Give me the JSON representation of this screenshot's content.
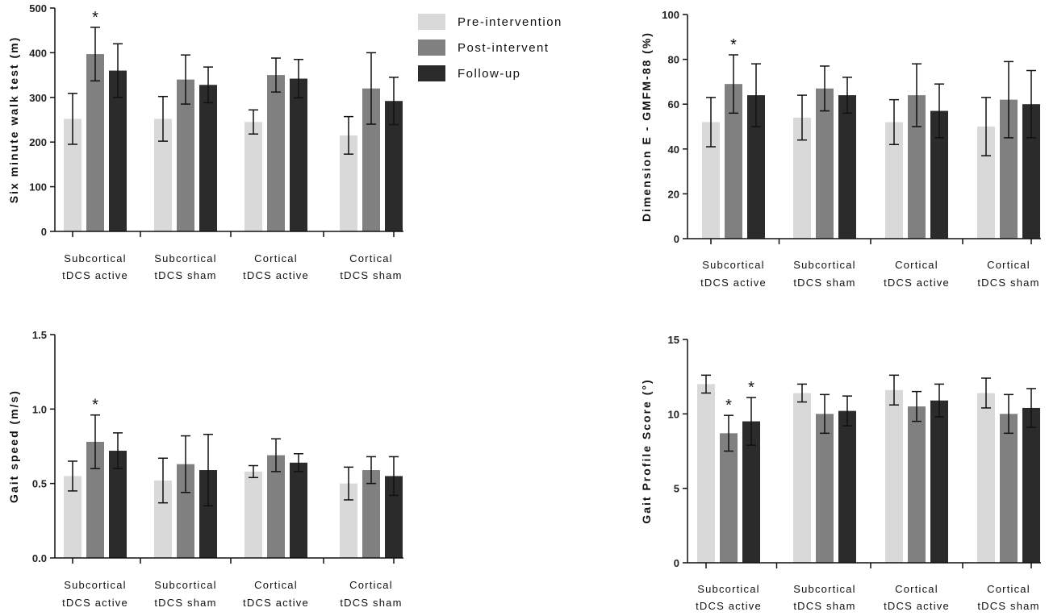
{
  "legend": {
    "entries": [
      {
        "label": "Pre-intervention",
        "color": "#d9d9d9"
      },
      {
        "label": "Post-intervent",
        "color": "#808080"
      },
      {
        "label": "Follow-up",
        "color": "#2b2b2b"
      }
    ]
  },
  "chart_data": [
    {
      "id": "six-minute-walk",
      "type": "bar",
      "ylabel": "Six minute walk test (m)",
      "ylim": [
        0,
        500
      ],
      "yticks": [
        "0",
        "100",
        "200",
        "300",
        "400",
        "500"
      ],
      "categories": [
        [
          "Subcortical",
          "tDCS active"
        ],
        [
          "Subcortical",
          "tDCS sham"
        ],
        [
          "Cortical",
          "tDCS active"
        ],
        [
          "Cortical",
          "tDCS sham"
        ]
      ],
      "series": [
        {
          "name": "Pre-intervention",
          "values": [
            252,
            252,
            245,
            215
          ],
          "errors": [
            57,
            50,
            27,
            42
          ]
        },
        {
          "name": "Post-intervent",
          "values": [
            397,
            340,
            350,
            320
          ],
          "errors": [
            60,
            55,
            38,
            80
          ]
        },
        {
          "name": "Follow-up",
          "values": [
            360,
            328,
            342,
            292
          ],
          "errors": [
            60,
            40,
            43,
            53
          ]
        }
      ],
      "annotations": [
        {
          "category": 0,
          "series": 1,
          "text": "*"
        }
      ]
    },
    {
      "id": "dimension-e",
      "type": "bar",
      "ylabel": "Dimension E - GMFM-88 (%)",
      "ylim": [
        0,
        100
      ],
      "yticks": [
        "0",
        "20",
        "40",
        "60",
        "80",
        "100"
      ],
      "categories": [
        [
          "Subcortical",
          "tDCS active"
        ],
        [
          "Subcortical",
          "tDCS sham"
        ],
        [
          "Cortical",
          "tDCS active"
        ],
        [
          "Cortical",
          "tDCS sham"
        ]
      ],
      "series": [
        {
          "name": "Pre-intervention",
          "values": [
            52,
            54,
            52,
            50
          ],
          "errors": [
            11,
            10,
            10,
            13
          ]
        },
        {
          "name": "Post-intervent",
          "values": [
            69,
            67,
            64,
            62
          ],
          "errors": [
            13,
            10,
            14,
            17
          ]
        },
        {
          "name": "Follow-up",
          "values": [
            64,
            64,
            57,
            60
          ],
          "errors": [
            14,
            8,
            12,
            15
          ]
        }
      ],
      "annotations": [
        {
          "category": 0,
          "series": 1,
          "text": "*"
        }
      ]
    },
    {
      "id": "gait-speed",
      "type": "bar",
      "ylabel": "Gait speed (m/s)",
      "ylim": [
        0,
        1.5
      ],
      "yticks": [
        "0.0",
        "0.5",
        "1.0",
        "1.5"
      ],
      "categories": [
        [
          "Subcortical",
          "tDCS active"
        ],
        [
          "Subcortical",
          "tDCS sham"
        ],
        [
          "Cortical",
          "tDCS active"
        ],
        [
          "Cortical",
          "tDCS sham"
        ]
      ],
      "series": [
        {
          "name": "Pre-intervention",
          "values": [
            0.55,
            0.52,
            0.58,
            0.5
          ],
          "errors": [
            0.1,
            0.15,
            0.04,
            0.11
          ]
        },
        {
          "name": "Post-intervent",
          "values": [
            0.78,
            0.63,
            0.69,
            0.59
          ],
          "errors": [
            0.18,
            0.19,
            0.11,
            0.09
          ]
        },
        {
          "name": "Follow-up",
          "values": [
            0.72,
            0.59,
            0.64,
            0.55
          ],
          "errors": [
            0.12,
            0.24,
            0.06,
            0.13
          ]
        }
      ],
      "annotations": [
        {
          "category": 0,
          "series": 1,
          "text": "*"
        }
      ]
    },
    {
      "id": "gait-profile-score",
      "type": "bar",
      "ylabel": "Gait Profile Score (°)",
      "ylim": [
        0,
        15
      ],
      "yticks": [
        "0",
        "5",
        "10",
        "15"
      ],
      "categories": [
        [
          "Subcortical",
          "tDCS active"
        ],
        [
          "Subcortical",
          "tDCS sham"
        ],
        [
          "Cortical",
          "tDCS active"
        ],
        [
          "Cortical",
          "tDCS sham"
        ]
      ],
      "series": [
        {
          "name": "Pre-intervention",
          "values": [
            12.0,
            11.4,
            11.6,
            11.4
          ],
          "errors": [
            0.6,
            0.6,
            1.0,
            1.0
          ]
        },
        {
          "name": "Post-intervent",
          "values": [
            8.7,
            10.0,
            10.5,
            10.0
          ],
          "errors": [
            1.2,
            1.3,
            1.0,
            1.3
          ]
        },
        {
          "name": "Follow-up",
          "values": [
            9.5,
            10.2,
            10.9,
            10.4
          ],
          "errors": [
            1.6,
            1.0,
            1.1,
            1.3
          ]
        }
      ],
      "annotations": [
        {
          "category": 0,
          "series": 1,
          "text": "*"
        },
        {
          "category": 0,
          "series": 2,
          "text": "*"
        }
      ]
    }
  ]
}
